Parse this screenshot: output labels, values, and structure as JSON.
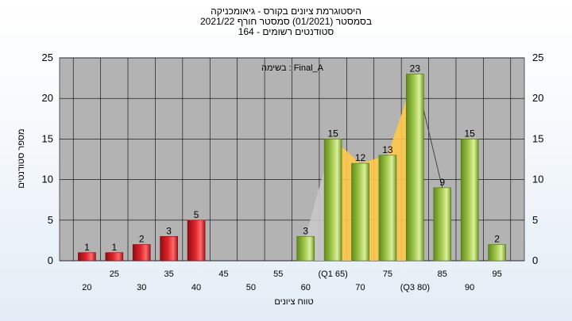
{
  "titles": {
    "line1": "היסטוגרמת ציונים בקורס - גיאומכניקה",
    "line2": "בסמסטר  (01/2021)  סמסטר חורף 2021/22",
    "line3": "סטודנטים רשומים - 164"
  },
  "colors": {
    "plot_bg": "#b3b3b3",
    "red_bar": "#e0242c",
    "green_bar": "#a3c94c",
    "curve_fill": "#ffc84a",
    "grid": "#000000"
  },
  "chart_data": {
    "type": "bar",
    "title": "היסטוגרמת ציונים בקורס - גיאומכניקה",
    "xlabel": "טווח ציונים",
    "ylabel": "מספר סטודנטים",
    "annotation": "בשימה : Final_A",
    "ylim": [
      0,
      25
    ],
    "yticks": [
      "0",
      "5",
      "10",
      "15",
      "20",
      "25"
    ],
    "categories": [
      "20",
      "25",
      "30",
      "35",
      "40",
      "45",
      "50",
      "55",
      "60",
      "(Q1 65)",
      "70",
      "75",
      "(Q3 80)",
      "85",
      "90",
      "95"
    ],
    "values": [
      1,
      1,
      2,
      3,
      5,
      0,
      0,
      0,
      3,
      15,
      12,
      13,
      23,
      9,
      15,
      2
    ],
    "value_labels": [
      "1",
      "1",
      "2",
      "3",
      "5",
      "",
      "",
      "",
      "3",
      "15",
      "12",
      "13",
      "23",
      "9",
      "15",
      "2"
    ],
    "bar_colors": [
      "red",
      "red",
      "red",
      "red",
      "red",
      "none",
      "none",
      "none",
      "green",
      "green",
      "green",
      "green",
      "green",
      "green",
      "green",
      "green"
    ],
    "grid": true,
    "secondary_y_axis": true
  }
}
